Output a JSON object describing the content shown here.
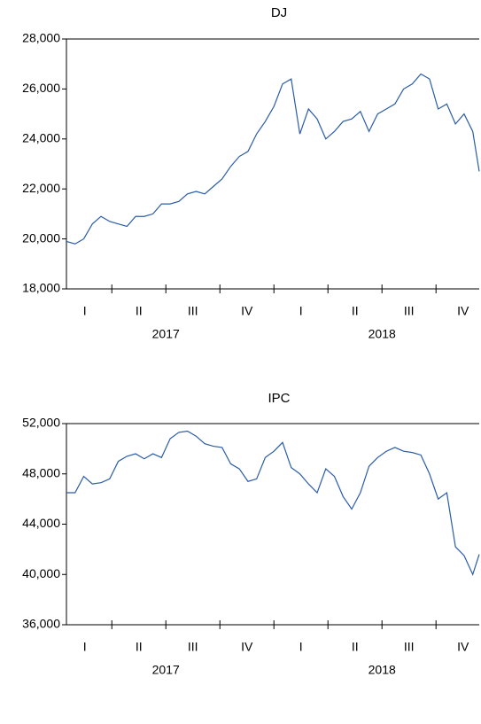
{
  "chart_data": [
    {
      "type": "line",
      "title": "DJ",
      "x": [
        2017.04,
        2017.08,
        2017.12,
        2017.16,
        2017.2,
        2017.24,
        2017.28,
        2017.32,
        2017.36,
        2017.4,
        2017.44,
        2017.48,
        2017.52,
        2017.56,
        2017.6,
        2017.64,
        2017.68,
        2017.72,
        2017.76,
        2017.8,
        2017.84,
        2017.88,
        2017.92,
        2017.96,
        2018.0,
        2018.04,
        2018.08,
        2018.12,
        2018.16,
        2018.2,
        2018.24,
        2018.28,
        2018.32,
        2018.36,
        2018.4,
        2018.44,
        2018.48,
        2018.52,
        2018.56,
        2018.6,
        2018.64,
        2018.68,
        2018.72,
        2018.76,
        2018.8,
        2018.84,
        2018.88,
        2018.92,
        2018.95
      ],
      "series": [
        {
          "color": "#2a5ca8",
          "values": [
            19900,
            19800,
            20000,
            20600,
            20900,
            20700,
            20600,
            20500,
            20900,
            20900,
            21000,
            21400,
            21400,
            21500,
            21800,
            21900,
            21800,
            22100,
            22400,
            22900,
            23300,
            23500,
            24200,
            24700,
            25300,
            26200,
            26400,
            24200,
            25200,
            24800,
            24000,
            24300,
            24700,
            24800,
            25100,
            24300,
            25000,
            25200,
            25400,
            26000,
            26200,
            26600,
            26400,
            25200,
            25400,
            24600,
            25000,
            24300,
            22700
          ]
        }
      ],
      "xlim": [
        2017.04,
        2018.95
      ],
      "xticks": [
        {
          "value": 2017.125,
          "label": "I"
        },
        {
          "value": 2017.375,
          "label": "II"
        },
        {
          "value": 2017.625,
          "label": "III"
        },
        {
          "value": 2017.875,
          "label": "IV"
        },
        {
          "value": 2018.125,
          "label": "I"
        },
        {
          "value": 2018.375,
          "label": "II"
        },
        {
          "value": 2018.625,
          "label": "III"
        },
        {
          "value": 2018.875,
          "label": "IV"
        }
      ],
      "xgroups": [
        {
          "value": 2017.5,
          "label": "2017"
        },
        {
          "value": 2018.5,
          "label": "2018"
        }
      ],
      "ylim": [
        18000,
        28000
      ],
      "yticks": [
        {
          "value": 18000,
          "label": "18,000"
        },
        {
          "value": 20000,
          "label": "20,000"
        },
        {
          "value": 22000,
          "label": "22,000"
        },
        {
          "value": 24000,
          "label": "24,000"
        },
        {
          "value": 26000,
          "label": "26,000"
        },
        {
          "value": 28000,
          "label": "28,000"
        }
      ]
    },
    {
      "type": "line",
      "title": "IPC",
      "x": [
        2017.04,
        2017.08,
        2017.12,
        2017.16,
        2017.2,
        2017.24,
        2017.28,
        2017.32,
        2017.36,
        2017.4,
        2017.44,
        2017.48,
        2017.52,
        2017.56,
        2017.6,
        2017.64,
        2017.68,
        2017.72,
        2017.76,
        2017.8,
        2017.84,
        2017.88,
        2017.92,
        2017.96,
        2018.0,
        2018.04,
        2018.08,
        2018.12,
        2018.16,
        2018.2,
        2018.24,
        2018.28,
        2018.32,
        2018.36,
        2018.4,
        2018.44,
        2018.48,
        2018.52,
        2018.56,
        2018.6,
        2018.64,
        2018.68,
        2018.72,
        2018.76,
        2018.8,
        2018.84,
        2018.88,
        2018.92,
        2018.95
      ],
      "series": [
        {
          "color": "#2a5ca8",
          "values": [
            46500,
            46500,
            47800,
            47200,
            47300,
            47600,
            49000,
            49400,
            49600,
            49200,
            49600,
            49300,
            50800,
            51300,
            51400,
            51000,
            50400,
            50200,
            50100,
            48800,
            48400,
            47400,
            47600,
            49300,
            49800,
            50500,
            48500,
            48000,
            47200,
            46500,
            48400,
            47800,
            46200,
            45200,
            46500,
            48600,
            49300,
            49800,
            50100,
            49800,
            49700,
            49500,
            48000,
            46000,
            46500,
            42200,
            41500,
            40000,
            41600
          ]
        }
      ],
      "xlim": [
        2017.04,
        2018.95
      ],
      "xticks": [
        {
          "value": 2017.125,
          "label": "I"
        },
        {
          "value": 2017.375,
          "label": "II"
        },
        {
          "value": 2017.625,
          "label": "III"
        },
        {
          "value": 2017.875,
          "label": "IV"
        },
        {
          "value": 2018.125,
          "label": "I"
        },
        {
          "value": 2018.375,
          "label": "II"
        },
        {
          "value": 2018.625,
          "label": "III"
        },
        {
          "value": 2018.875,
          "label": "IV"
        }
      ],
      "xgroups": [
        {
          "value": 2017.5,
          "label": "2017"
        },
        {
          "value": 2018.5,
          "label": "2018"
        }
      ],
      "ylim": [
        36000,
        52000
      ],
      "yticks": [
        {
          "value": 36000,
          "label": "36,000"
        },
        {
          "value": 40000,
          "label": "40,000"
        },
        {
          "value": 44000,
          "label": "44,000"
        },
        {
          "value": 48000,
          "label": "48,000"
        },
        {
          "value": 52000,
          "label": "52,000"
        }
      ]
    }
  ]
}
